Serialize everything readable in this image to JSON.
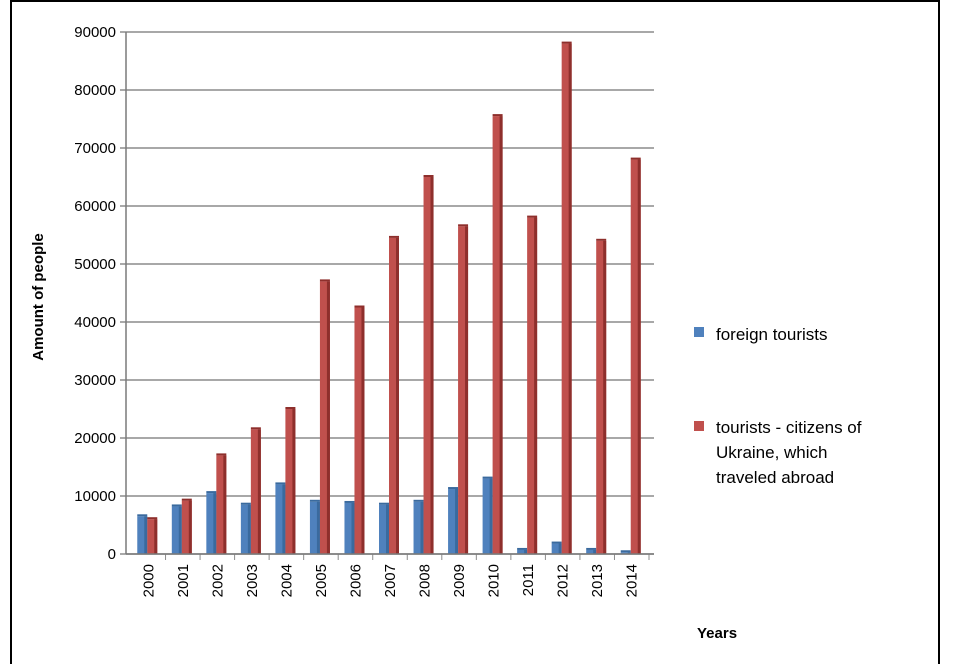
{
  "chart_data": {
    "type": "bar",
    "title": "",
    "xlabel": "Years",
    "ylabel": "Amount of people",
    "ylim": [
      0,
      90000
    ],
    "yticks": [
      0,
      10000,
      20000,
      30000,
      40000,
      50000,
      60000,
      70000,
      80000,
      90000
    ],
    "grid": true,
    "legend_position": "right",
    "categories": [
      "2000",
      "2001",
      "2002",
      "2003",
      "2004",
      "2005",
      "2006",
      "2007",
      "2008",
      "2009",
      "2010",
      "2011",
      "2012",
      "2013",
      "2014"
    ],
    "series": [
      {
        "name": "foreign tourists",
        "color": "#4f81bd",
        "values": [
          6500,
          8200,
          10500,
          8500,
          12000,
          9000,
          8800,
          8500,
          9000,
          11200,
          13000,
          700,
          1800,
          700,
          300
        ]
      },
      {
        "name": "tourists - citizens of Ukraine, which traveled abroad",
        "legend_lines": [
          "tourists - citizens of",
          "Ukraine, which",
          "traveled abroad"
        ],
        "color": "#c0504d",
        "values": [
          6000,
          9200,
          17000,
          21500,
          25000,
          47000,
          42500,
          54500,
          65000,
          56500,
          75500,
          58000,
          88000,
          54000,
          68000
        ]
      }
    ]
  }
}
